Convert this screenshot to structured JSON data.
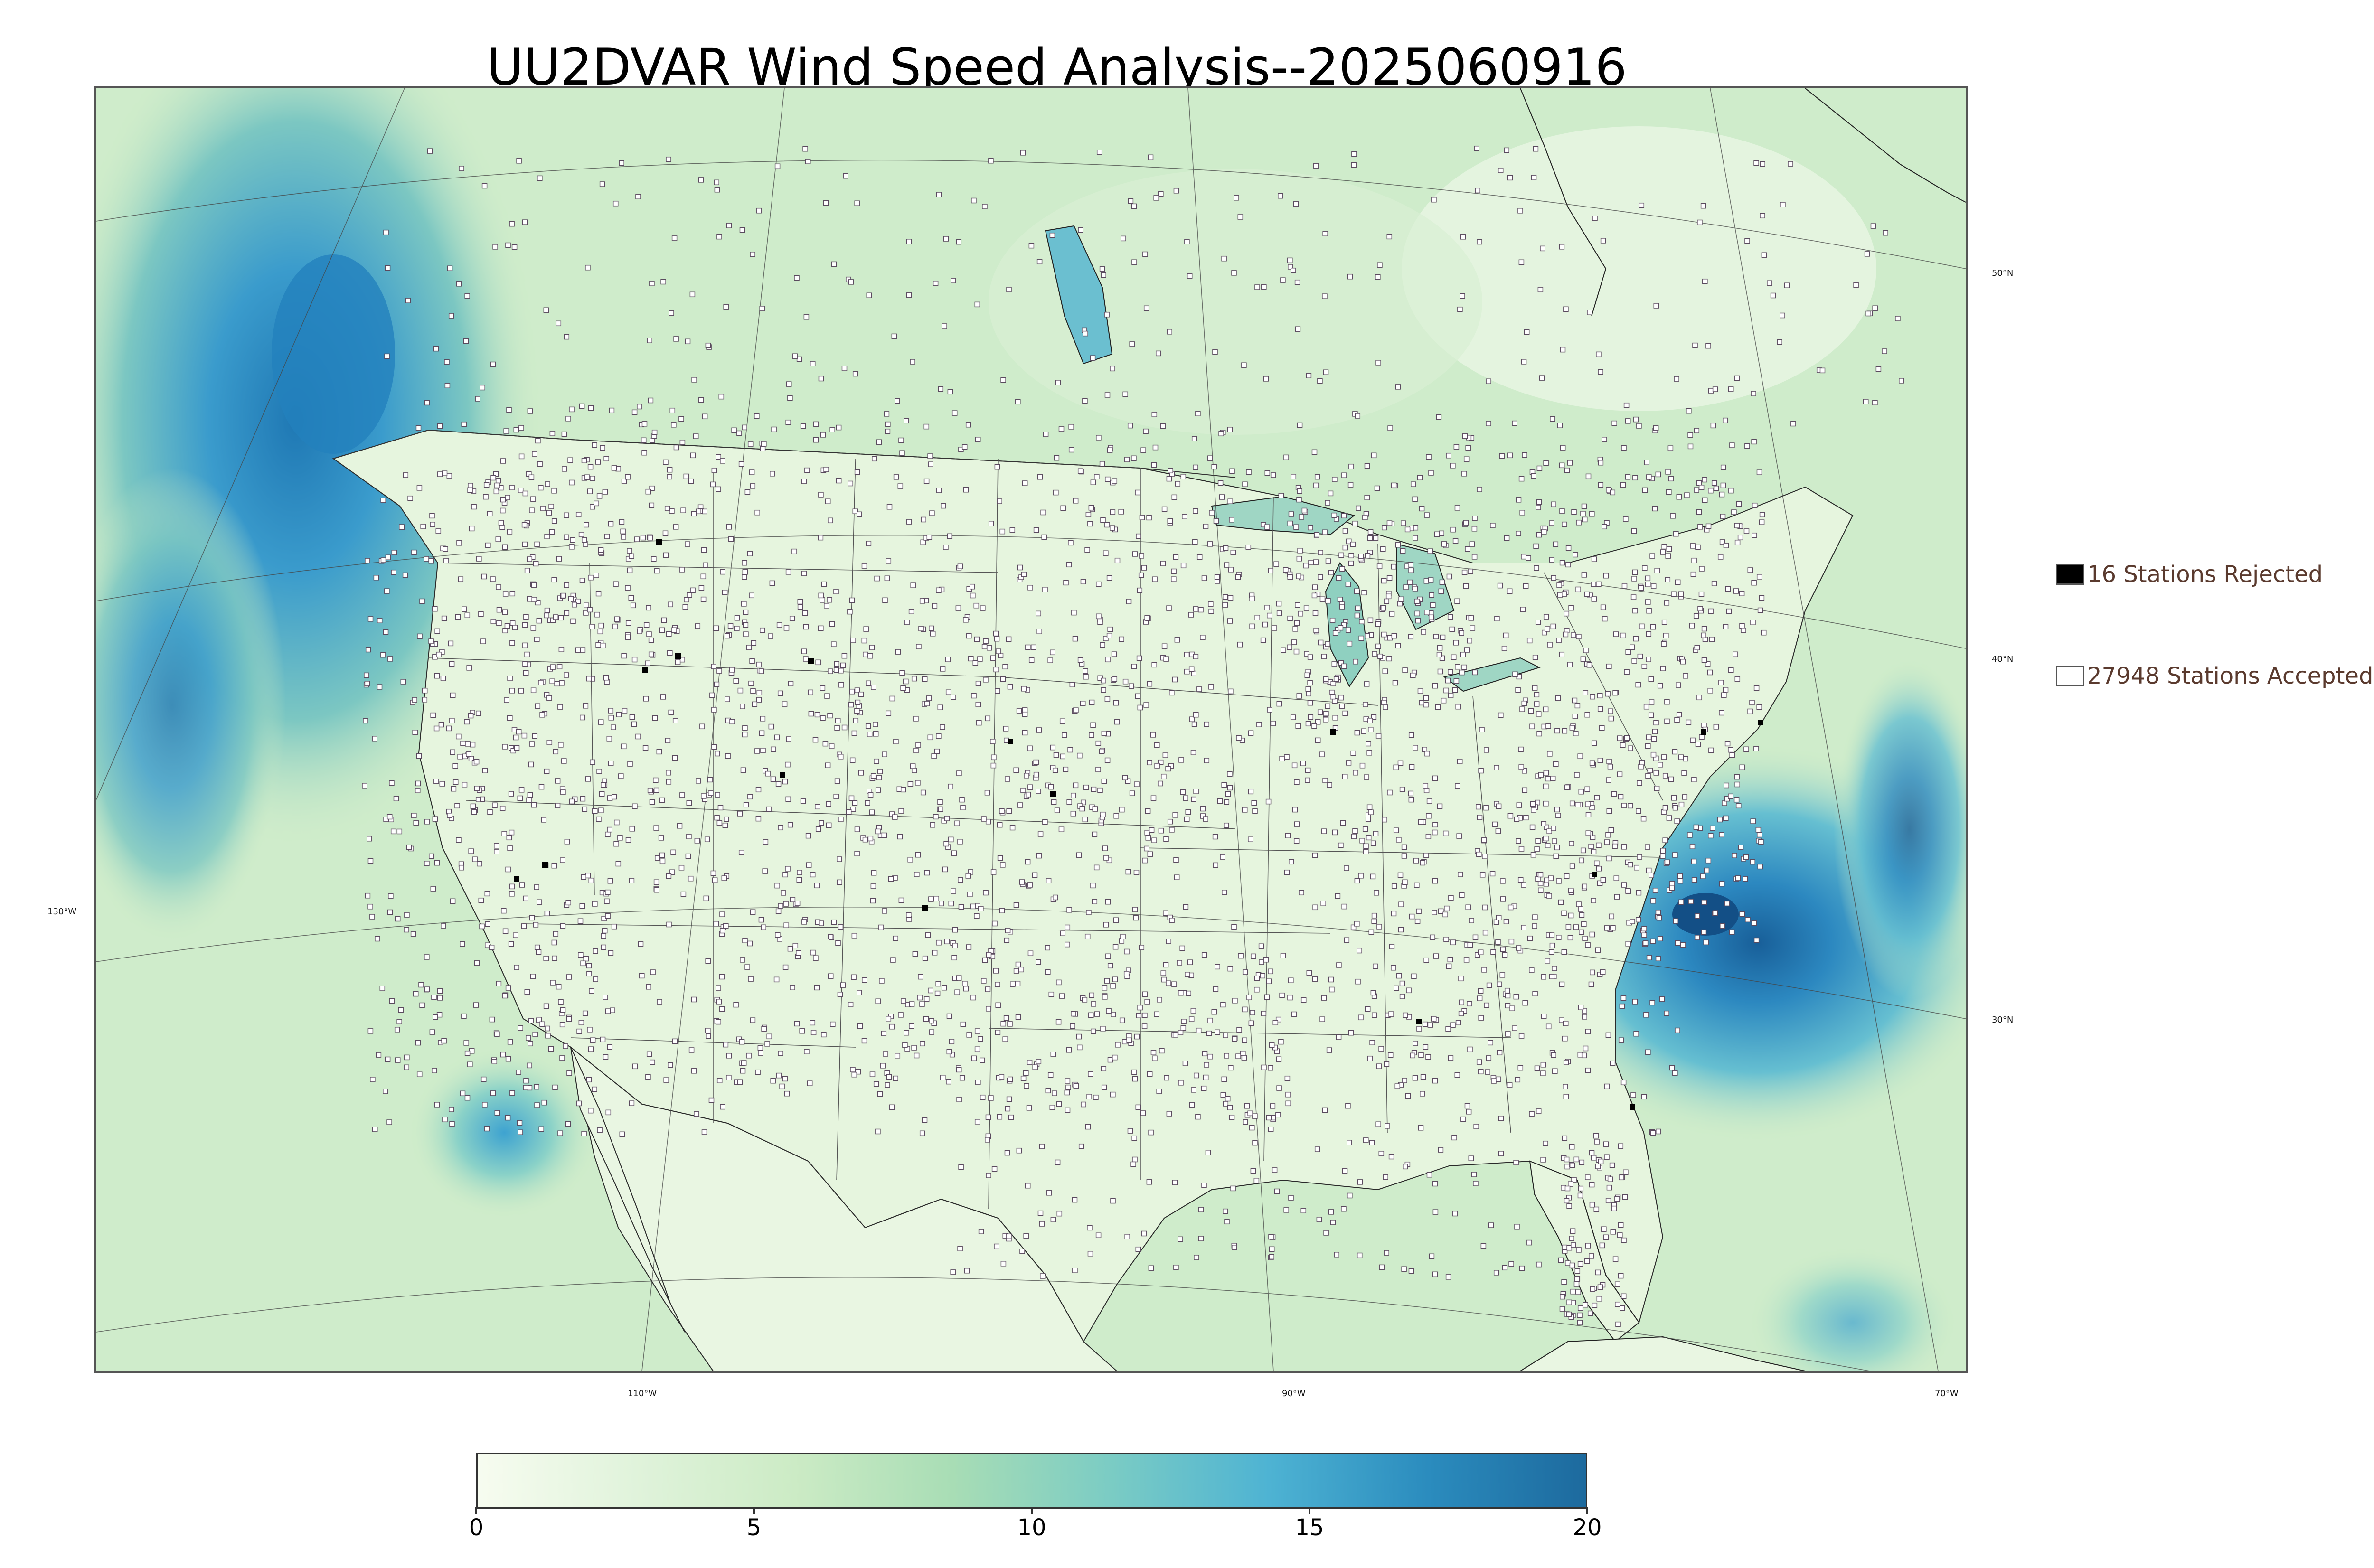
{
  "title": "UU2DVAR Wind Speed Analysis--2025060916",
  "map": {
    "lat_labels": [
      "50°N",
      "40°N",
      "30°N"
    ],
    "lon_labels": [
      "130°W",
      "110°W",
      "90°W",
      "70°W"
    ],
    "ocean_color": "#cde9c4",
    "land_color": "#e3f3dc",
    "high_wind_color": "#2f8cc4",
    "accepted_marker_color": "#ffffff",
    "rejected_marker_color": "#000000"
  },
  "legend": {
    "rejected": {
      "count": 16,
      "label": "16 Stations Rejected",
      "color": "#000000"
    },
    "accepted": {
      "count": 27948,
      "label": "27948 Stations Accepted",
      "color": "#ffffff"
    }
  },
  "colorbar": {
    "min": 0,
    "max": 20,
    "ticks": [
      "0",
      "5",
      "10",
      "15",
      "20"
    ],
    "colors": [
      "#f7fcf0",
      "#e0f3db",
      "#ccebc5",
      "#a8ddb5",
      "#7bccc4",
      "#4eb3d3",
      "#2b8cbe",
      "#1d6a9e"
    ]
  }
}
